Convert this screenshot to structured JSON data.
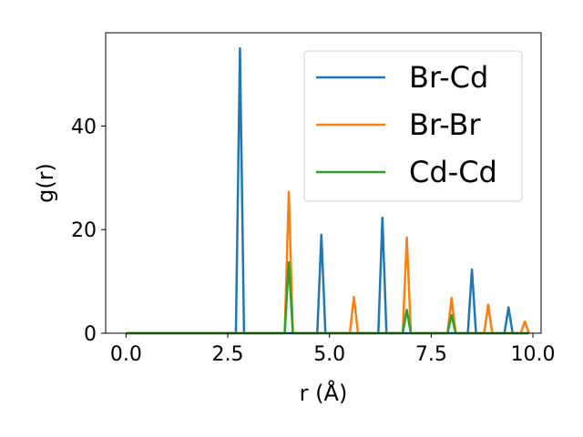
{
  "chart_data": {
    "type": "line",
    "xlabel": "r (Å)",
    "ylabel": "g(r)",
    "xlim": [
      -0.5,
      10.2
    ],
    "ylim": [
      0,
      58
    ],
    "grid": false,
    "legend_position": "top-right",
    "x_ticks": [
      0.0,
      2.5,
      5.0,
      7.5,
      10.0
    ],
    "x_tick_labels": [
      "0.0",
      "2.5",
      "5.0",
      "7.5",
      "10.0"
    ],
    "y_ticks": [
      0,
      20,
      40
    ],
    "y_tick_labels": [
      "0",
      "20",
      "40"
    ],
    "x_start": 0.0,
    "x_end": 9.9,
    "peak_half_width": 0.1,
    "series": [
      {
        "name": "Br-Cd",
        "color": "#1f77b4",
        "peaks": [
          {
            "r": 2.8,
            "g": 55.0
          },
          {
            "r": 4.8,
            "g": 19.0
          },
          {
            "r": 6.3,
            "g": 22.3
          },
          {
            "r": 8.5,
            "g": 12.3
          },
          {
            "r": 9.4,
            "g": 5.0
          }
        ]
      },
      {
        "name": "Br-Br",
        "color": "#ff7f0e",
        "peaks": [
          {
            "r": 4.0,
            "g": 27.3
          },
          {
            "r": 5.6,
            "g": 7.0
          },
          {
            "r": 6.9,
            "g": 18.5
          },
          {
            "r": 8.0,
            "g": 6.8
          },
          {
            "r": 8.9,
            "g": 5.5
          },
          {
            "r": 9.8,
            "g": 2.3
          }
        ]
      },
      {
        "name": "Cd-Cd",
        "color": "#2ca02c",
        "peaks": [
          {
            "r": 4.0,
            "g": 13.7
          },
          {
            "r": 6.9,
            "g": 4.5
          },
          {
            "r": 8.0,
            "g": 3.5
          }
        ]
      }
    ]
  }
}
